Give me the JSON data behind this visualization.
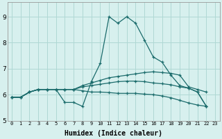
{
  "xlabel": "Humidex (Indice chaleur)",
  "background_color": "#d7f0ee",
  "grid_color": "#afd8d4",
  "line_color": "#1a6b6b",
  "xlim": [
    -0.5,
    23.5
  ],
  "ylim": [
    5.0,
    9.55
  ],
  "xticks": [
    0,
    1,
    2,
    3,
    4,
    5,
    6,
    7,
    8,
    9,
    10,
    11,
    12,
    13,
    14,
    15,
    16,
    17,
    18,
    19,
    20,
    21,
    22,
    23
  ],
  "yticks": [
    5,
    6,
    7,
    8,
    9
  ],
  "series": [
    {
      "x": [
        0,
        1,
        2,
        3,
        4,
        5,
        6,
        7,
        8,
        9,
        10,
        11,
        12,
        13,
        14,
        15,
        16,
        17,
        18,
        19,
        20,
        21,
        22
      ],
      "y": [
        5.9,
        5.9,
        6.1,
        6.2,
        6.2,
        6.2,
        5.7,
        5.7,
        5.55,
        6.5,
        7.2,
        9.0,
        8.75,
        9.0,
        8.75,
        8.1,
        7.45,
        7.25,
        6.75,
        6.35,
        6.25,
        6.1,
        5.55
      ]
    },
    {
      "x": [
        0,
        1,
        2,
        3,
        4,
        5,
        6,
        7,
        8,
        9,
        10,
        11,
        12,
        13,
        14,
        15,
        16,
        17,
        18,
        19,
        20,
        21,
        22
      ],
      "y": [
        5.9,
        5.9,
        6.1,
        6.2,
        6.2,
        6.2,
        6.2,
        6.2,
        6.35,
        6.45,
        6.55,
        6.65,
        6.7,
        6.75,
        6.8,
        6.85,
        6.88,
        6.85,
        6.82,
        6.75,
        6.3,
        6.2,
        6.1
      ]
    },
    {
      "x": [
        0,
        1,
        2,
        3,
        4,
        5,
        6,
        7,
        8,
        9,
        10,
        11,
        12,
        13,
        14,
        15,
        16,
        17,
        18,
        19,
        20,
        21,
        22
      ],
      "y": [
        5.9,
        5.9,
        6.1,
        6.2,
        6.2,
        6.2,
        6.2,
        6.2,
        6.3,
        6.35,
        6.4,
        6.45,
        6.5,
        6.52,
        6.52,
        6.5,
        6.45,
        6.42,
        6.38,
        6.3,
        6.25,
        6.1,
        5.55
      ]
    },
    {
      "x": [
        0,
        1,
        2,
        3,
        4,
        5,
        6,
        7,
        8,
        9,
        10,
        11,
        12,
        13,
        14,
        15,
        16,
        17,
        18,
        19,
        20,
        21,
        22
      ],
      "y": [
        5.9,
        5.9,
        6.1,
        6.2,
        6.2,
        6.2,
        6.2,
        6.2,
        6.15,
        6.1,
        6.1,
        6.08,
        6.05,
        6.05,
        6.05,
        6.02,
        6.0,
        5.95,
        5.88,
        5.78,
        5.68,
        5.6,
        5.55
      ]
    }
  ]
}
